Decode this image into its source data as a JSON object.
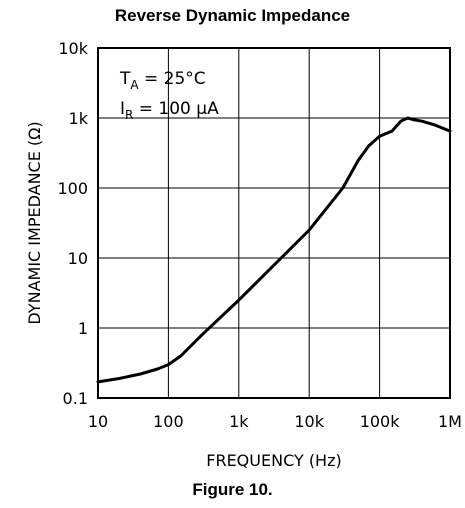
{
  "title": "Reverse Dynamic Impedance",
  "caption": "Figure 10.",
  "chart_data": {
    "type": "line",
    "title": "Reverse Dynamic Impedance",
    "xlabel": "FREQUENCY (Hz)",
    "ylabel": "DYNAMIC IMPEDANCE (Ω)",
    "x_scale": "log",
    "y_scale": "log",
    "xlim": [
      10,
      1000000
    ],
    "ylim": [
      0.1,
      10000
    ],
    "grid": true,
    "x_ticks": [
      10,
      100,
      1000,
      10000,
      100000,
      1000000
    ],
    "x_tick_labels": [
      "10",
      "100",
      "1k",
      "10k",
      "100k",
      "1M"
    ],
    "y_ticks": [
      0.1,
      1,
      10,
      100,
      1000,
      10000
    ],
    "y_tick_labels": [
      "0.1",
      "1",
      "10",
      "100",
      "1k",
      "10k"
    ],
    "annotations": [
      "T_A = 25°C",
      "I_R = 100 µA"
    ],
    "series": [
      {
        "x": [
          10,
          20,
          40,
          70,
          100,
          150,
          300,
          1000,
          3000,
          10000,
          30000,
          50000,
          70000,
          100000,
          150000,
          200000,
          250000,
          300000,
          400000,
          600000,
          1000000
        ],
        "y": [
          0.17,
          0.19,
          0.22,
          0.26,
          0.3,
          0.4,
          0.8,
          2.5,
          7.5,
          25,
          100,
          250,
          400,
          550,
          650,
          900,
          1000,
          950,
          900,
          800,
          650
        ]
      }
    ]
  },
  "colors": {
    "line": "#000000",
    "background": "#ffffff"
  }
}
